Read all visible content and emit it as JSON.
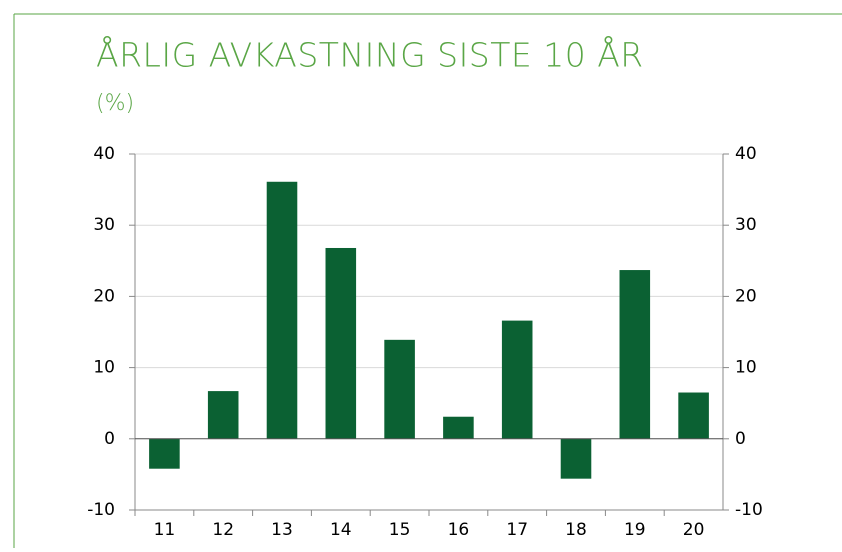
{
  "chart_data": {
    "type": "bar",
    "title": "ÅRLIG AVKASTNING SISTE 10 ÅR",
    "subtitle": "(%)",
    "categories": [
      "11",
      "12",
      "13",
      "14",
      "15",
      "16",
      "17",
      "18",
      "19",
      "20"
    ],
    "values": [
      -4.2,
      6.7,
      36.1,
      26.8,
      13.9,
      3.1,
      16.6,
      -5.6,
      23.7,
      6.5
    ],
    "color": "#0b6133",
    "ylim": [
      -10,
      40
    ],
    "yticks": [
      -10,
      0,
      10,
      20,
      30,
      40
    ],
    "y2lim": [
      -10,
      40
    ],
    "y2ticks": [
      -10,
      0,
      10,
      20,
      30,
      40
    ],
    "grid": true
  }
}
